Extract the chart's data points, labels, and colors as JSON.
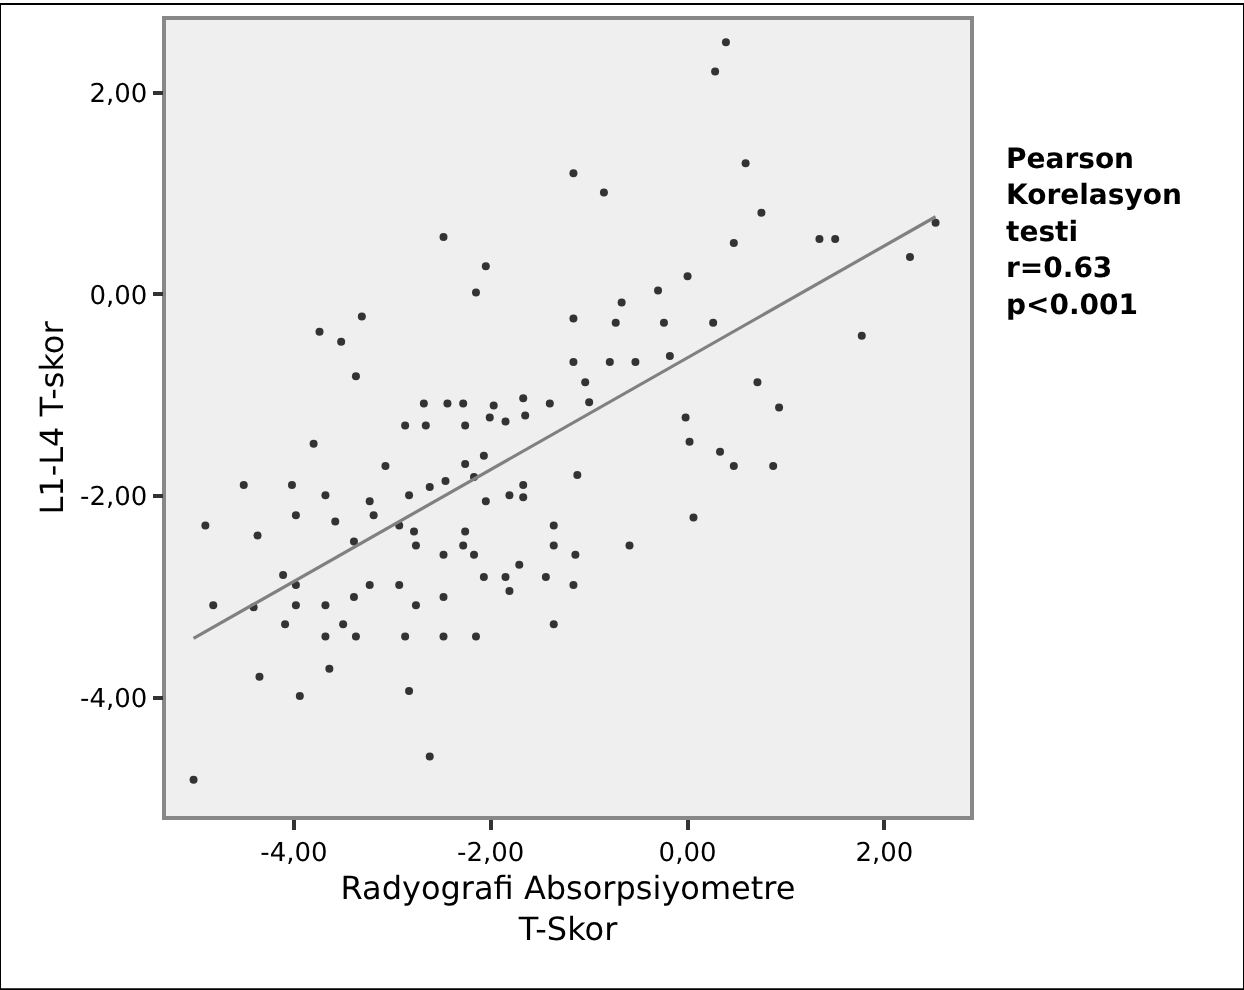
{
  "chart_data": {
    "type": "scatter",
    "xlabel": "Radyografi Absorpsiyometre\nT-Skor",
    "ylabel": "L1-L4 T-skor",
    "xlim": [
      -5.3,
      2.87
    ],
    "ylim": [
      -5.17,
      2.72
    ],
    "xticks": [
      {
        "value": -4,
        "label": "-4,00"
      },
      {
        "value": -2,
        "label": "-2,00"
      },
      {
        "value": 0,
        "label": "0,00"
      },
      {
        "value": 2,
        "label": "2,00"
      }
    ],
    "yticks": [
      {
        "value": -4,
        "label": "-4,00"
      },
      {
        "value": -2,
        "label": "-2,00"
      },
      {
        "value": 0,
        "label": "0,00"
      },
      {
        "value": 2,
        "label": "2,00"
      }
    ],
    "grid": false,
    "marker": "circle",
    "annotations": [
      "Pearson\nKorelasyon\ntesti\nr=0.63\np<0.001"
    ],
    "series": [
      {
        "color": "#333333",
        "x": [
          0.39,
          0.28,
          0.59,
          -1.16,
          -0.85,
          0.75,
          0.47,
          1.34,
          1.5,
          2.52,
          2.26,
          0.0,
          -0.3,
          -0.67,
          -1.16,
          -0.73,
          -0.24,
          0.26,
          1.77,
          -1.16,
          -0.79,
          -0.53,
          -0.18,
          -1.04,
          -1.0,
          0.71,
          0.93,
          -2.48,
          -2.05,
          -2.15,
          -3.31,
          -3.74,
          -3.52,
          -3.37,
          -0.02,
          0.02,
          0.33,
          0.47,
          0.87,
          -1.12,
          0.06,
          -0.59,
          -1.14,
          -1.16,
          -3.8,
          -3.07,
          -2.68,
          -2.44,
          -2.28,
          -1.97,
          -1.67,
          -1.4,
          -2.87,
          -2.66,
          -2.26,
          -2.01,
          -1.85,
          -1.65,
          -2.07,
          -2.26,
          -4.51,
          -4.02,
          -3.68,
          -3.23,
          -2.62,
          -2.83,
          -2.46,
          -2.17,
          -2.05,
          -1.81,
          -1.67,
          -1.67,
          -4.9,
          -4.37,
          -3.98,
          -3.58,
          -3.39,
          -3.19,
          -2.93,
          -2.78,
          -2.76,
          -2.26,
          -2.28,
          -2.48,
          -2.17,
          -2.07,
          -1.85,
          -1.81,
          -1.71,
          -1.44,
          -1.36,
          -1.36,
          -4.11,
          -3.98,
          -4.82,
          -4.41,
          -3.98,
          -3.68,
          -3.39,
          -3.23,
          -2.93,
          -2.76,
          -2.48,
          -4.09,
          -3.68,
          -3.5,
          -3.37,
          -2.87,
          -2.48,
          -2.15,
          -1.36,
          -4.35,
          -3.64,
          -3.94,
          -2.83,
          -2.62,
          -5.02
        ],
        "values": [
          2.5,
          2.21,
          1.3,
          1.2,
          1.01,
          0.81,
          0.51,
          0.55,
          0.55,
          0.71,
          0.37,
          0.18,
          0.04,
          -0.08,
          -0.24,
          -0.28,
          -0.28,
          -0.28,
          -0.41,
          -0.67,
          -0.67,
          -0.67,
          -0.61,
          -0.87,
          -1.07,
          -0.87,
          -1.12,
          0.57,
          0.28,
          0.02,
          -0.22,
          -0.37,
          -0.47,
          -0.81,
          -1.22,
          -1.46,
          -1.56,
          -1.7,
          -1.7,
          -1.79,
          -2.21,
          -2.49,
          -2.58,
          -2.88,
          -1.48,
          -1.7,
          -1.08,
          -1.08,
          -1.08,
          -1.1,
          -1.03,
          -1.08,
          -1.3,
          -1.3,
          -1.3,
          -1.22,
          -1.26,
          -1.2,
          -1.6,
          -1.68,
          -1.89,
          -1.89,
          -1.99,
          -2.05,
          -1.91,
          -1.99,
          -1.85,
          -1.81,
          -2.05,
          -1.99,
          -2.01,
          -1.89,
          -2.29,
          -2.39,
          -2.19,
          -2.25,
          -2.45,
          -2.19,
          -2.29,
          -2.35,
          -2.49,
          -2.35,
          -2.49,
          -2.58,
          -2.58,
          -2.8,
          -2.8,
          -2.94,
          -2.68,
          -2.8,
          -2.29,
          -2.49,
          -2.78,
          -2.88,
          -3.08,
          -3.1,
          -3.08,
          -3.08,
          -3.0,
          -2.88,
          -2.88,
          -3.08,
          -3.0,
          -3.27,
          -3.39,
          -3.27,
          -3.39,
          -3.39,
          -3.39,
          -3.39,
          -3.27,
          -3.79,
          -3.71,
          -3.98,
          -3.93,
          -4.58,
          -4.81
        ]
      },
      {
        "type": "line",
        "marker": "none",
        "color": "#808080",
        "x": [
          -5.02,
          2.52
        ],
        "values": [
          -3.41,
          0.77
        ]
      }
    ]
  }
}
